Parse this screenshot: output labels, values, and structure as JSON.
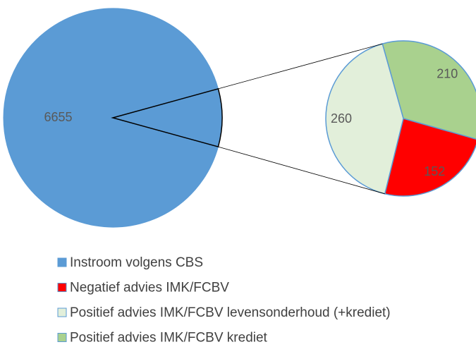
{
  "chart_data": {
    "type": "pie-of-pie",
    "categories": [
      "Instroom volgens CBS",
      "Negatief advies IMK/FCBV",
      "Positief advies IMK/FCBV levensonderhoud (+krediet)",
      "Positief advies IMK/FCBV krediet"
    ],
    "values": [
      6655,
      152,
      260,
      210
    ],
    "colors": [
      "#5b9bd5",
      "#ff0000",
      "#e2efda",
      "#a9d18e"
    ]
  }
}
